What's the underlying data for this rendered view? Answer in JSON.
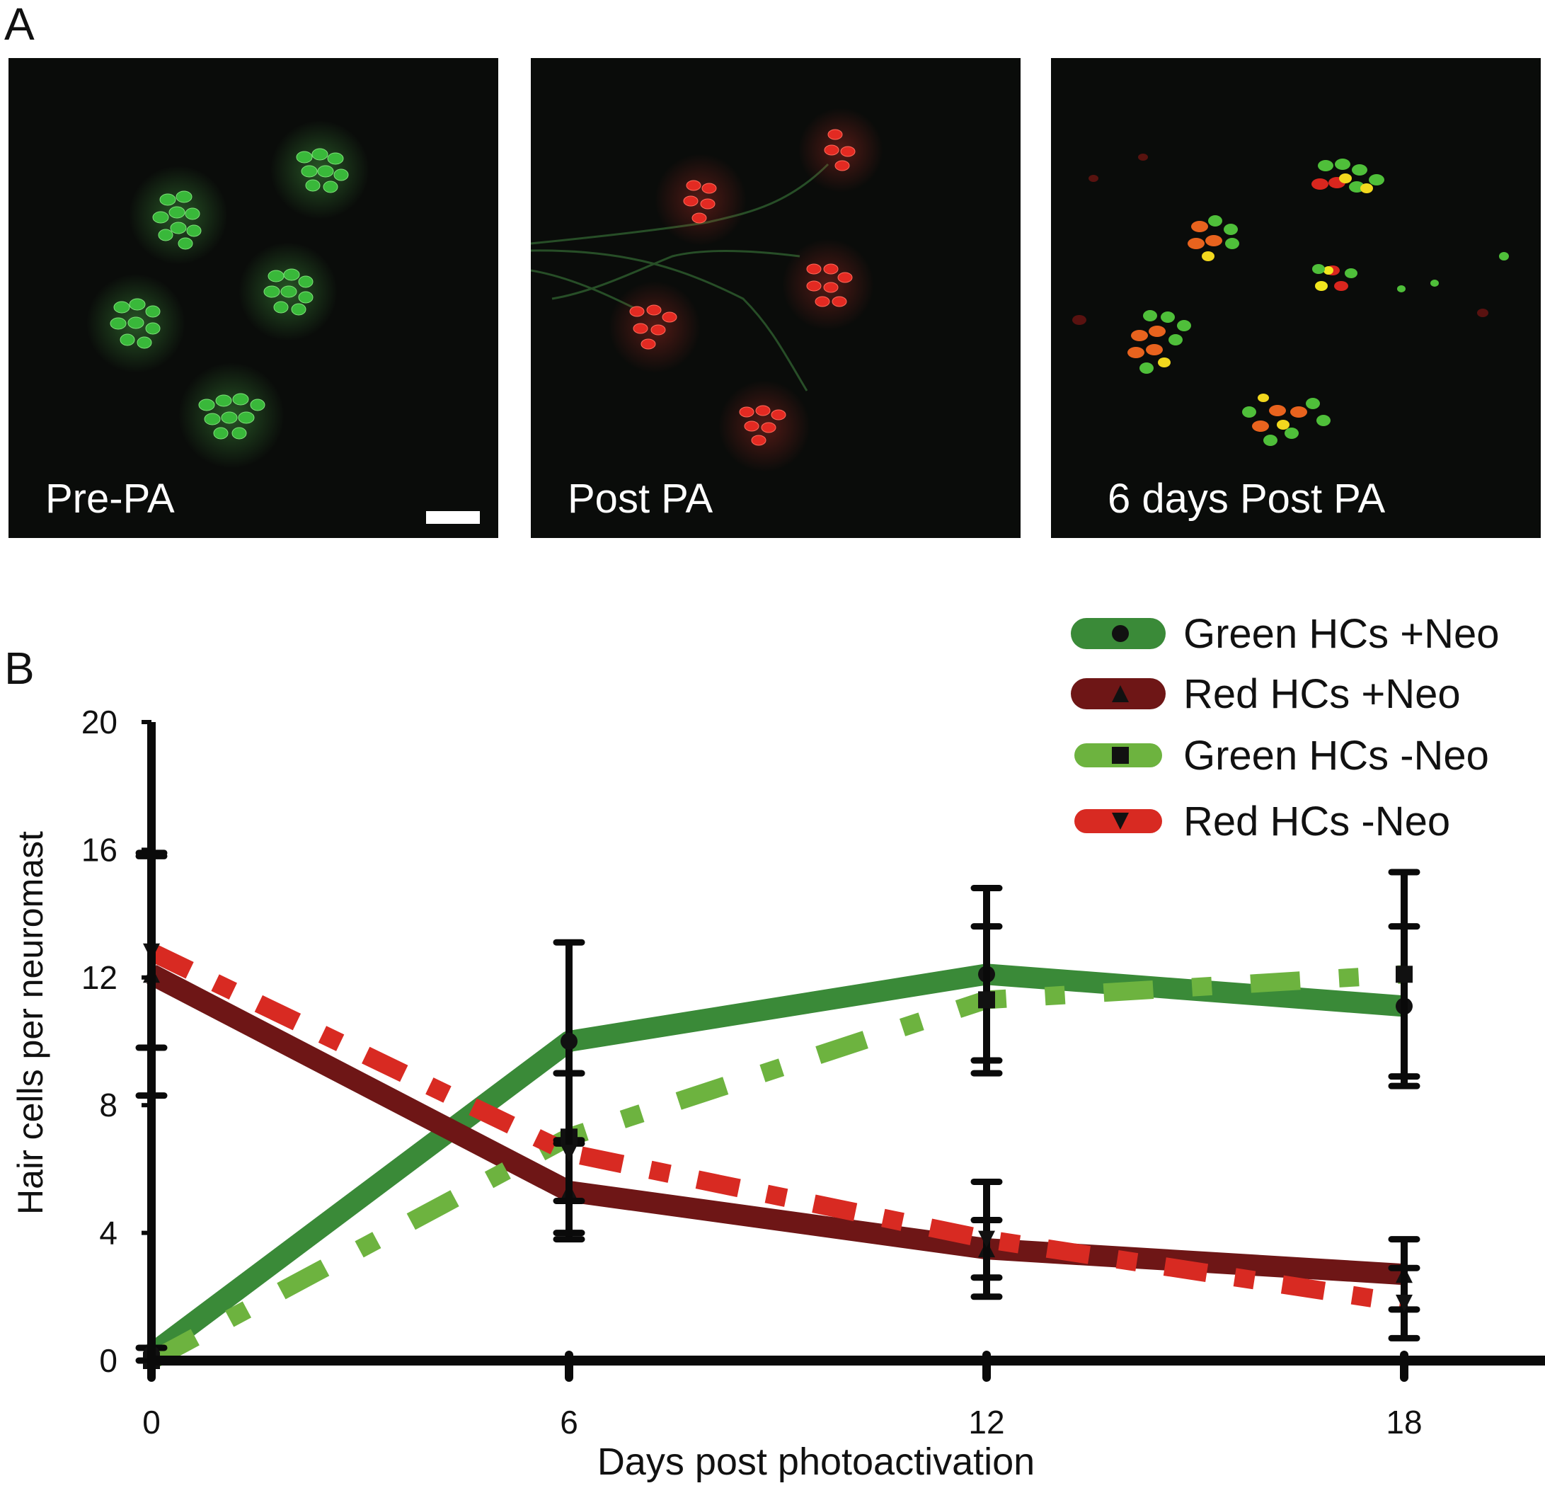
{
  "figure": {
    "panel_a_letter": "A",
    "panel_b_letter": "B",
    "micrographs": [
      {
        "label": "Pre-PA"
      },
      {
        "label": "Post PA"
      },
      {
        "label": "6 days Post PA"
      }
    ]
  },
  "colors": {
    "green_neo": "#3a8a38",
    "red_neo": "#6e1616",
    "green_noneo": "#6db33f",
    "red_noneo": "#d82a22",
    "axis": "#0a0a0a"
  },
  "chart_data": {
    "type": "line",
    "title": "",
    "xlabel": "Days post photoactivation",
    "ylabel": "Hair cells per neuromast",
    "x": [
      0,
      6,
      12,
      18
    ],
    "xlim": [
      0,
      20
    ],
    "ylim": [
      0,
      20
    ],
    "xticks": [
      0,
      6,
      12,
      18
    ],
    "yticks": [
      0,
      4,
      8,
      12,
      16,
      20
    ],
    "grid": false,
    "legend_position": "top-right",
    "series": [
      {
        "name": "Green HCs +Neo",
        "marker": "circle",
        "line_style": "solid",
        "values": [
          0.2,
          10.0,
          12.1,
          11.1
        ],
        "errors": [
          0.2,
          3.1,
          2.7,
          2.5
        ]
      },
      {
        "name": "Red HCs +Neo",
        "marker": "triangle-up",
        "line_style": "solid",
        "values": [
          12.1,
          5.3,
          3.5,
          2.7
        ],
        "errors": [
          3.8,
          1.5,
          0.9,
          1.1
        ]
      },
      {
        "name": "Green HCs -Neo",
        "marker": "square",
        "line_style": "dashed",
        "values": [
          0.0,
          7.0,
          11.3,
          12.1
        ],
        "errors": [
          0.0,
          2.0,
          2.3,
          3.2
        ]
      },
      {
        "name": "Red HCs -Neo",
        "marker": "triangle-down",
        "line_style": "dashed",
        "values": [
          12.8,
          6.5,
          3.8,
          1.8
        ],
        "errors": [
          3.0,
          2.5,
          1.8,
          1.1
        ]
      }
    ]
  }
}
